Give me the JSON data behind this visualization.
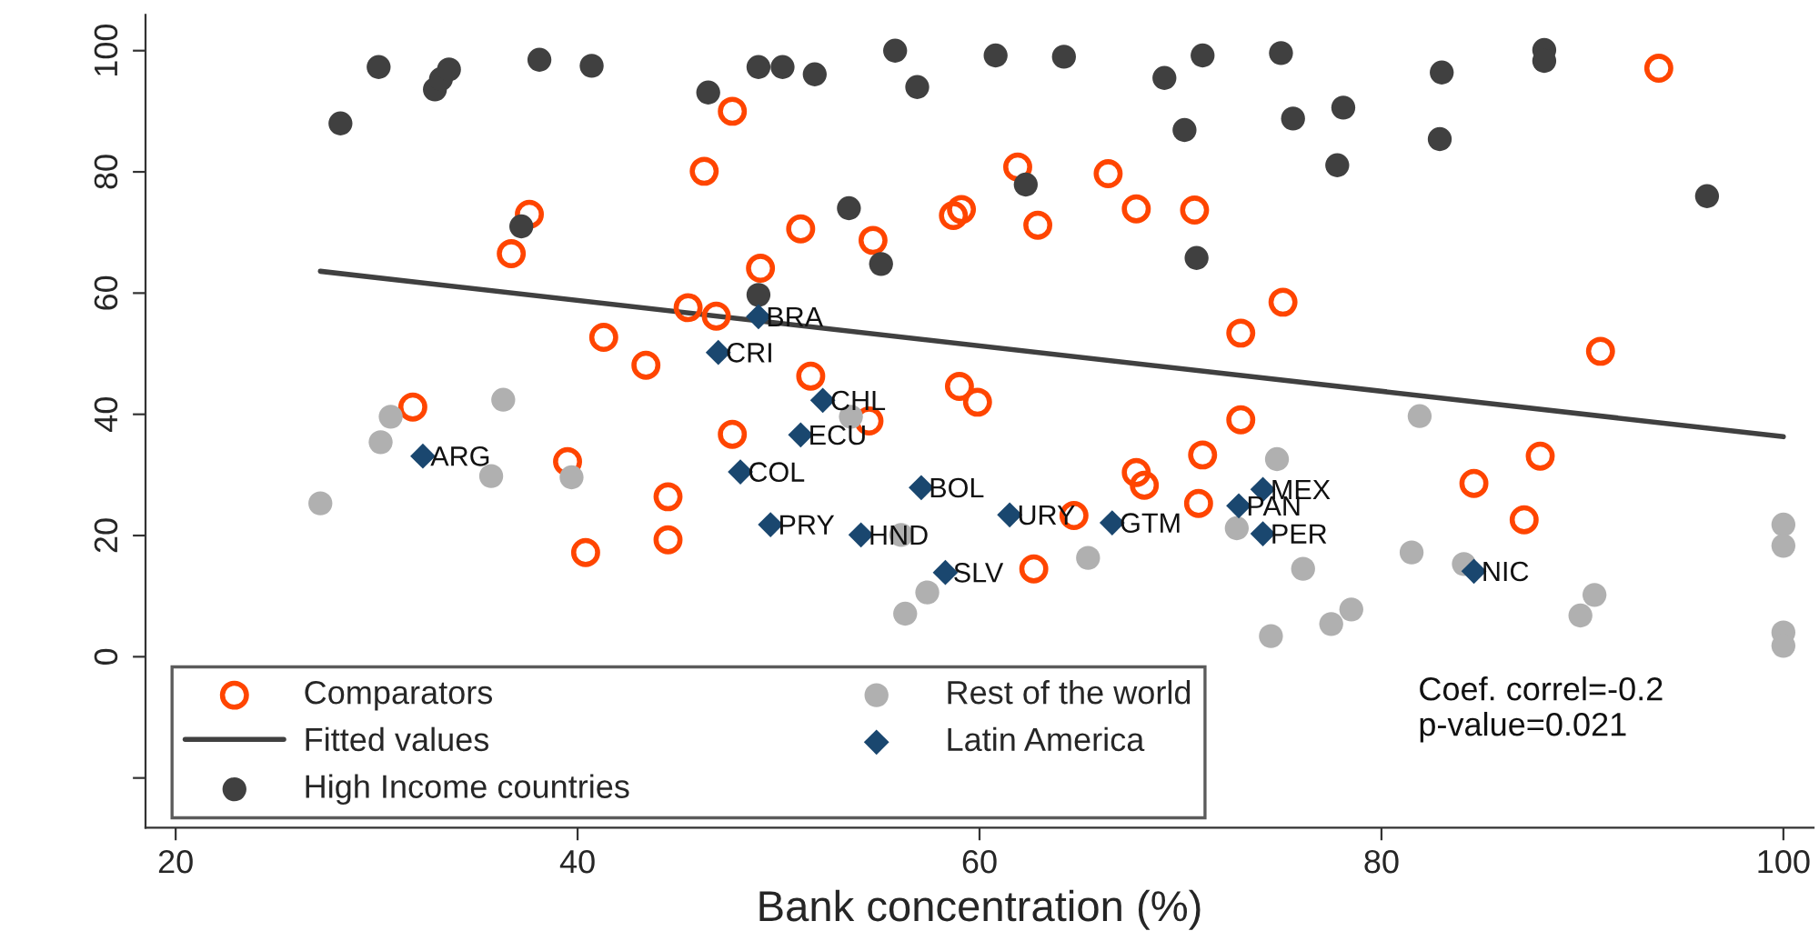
{
  "chart_data": {
    "type": "scatter",
    "xlabel": "Bank concentration (%)",
    "xlim": [
      18.5,
      101.5
    ],
    "xticks": [
      20,
      40,
      60,
      80,
      100
    ],
    "ylim": [
      -28.2,
      105.9
    ],
    "yticks": [
      {
        "value": -20,
        "label": null
      },
      0,
      20,
      40,
      60,
      80,
      100
    ],
    "grid": false,
    "legend": "bottom left",
    "annotations": [
      "Coef. correl=-0.2",
      "p-value=0.021"
    ],
    "series": [
      {
        "name": "Comparators",
        "marker": "circle-open",
        "color": "#ff4500",
        "x": [
          47.7,
          46.3,
          37.6,
          36.7,
          51.1,
          54.7,
          49.1,
          58.7,
          59.1,
          45.5,
          46.9,
          41.3,
          43.4,
          51.6,
          59.0,
          59.9,
          31.8,
          39.5,
          47.7,
          54.5,
          44.5,
          44.5,
          40.4,
          61.9,
          66.4,
          67.8,
          70.7,
          62.9,
          93.8,
          75.1,
          73.0,
          90.9,
          73.0,
          71.1,
          87.9,
          84.6,
          87.1,
          67.8,
          68.2,
          70.9,
          64.7,
          62.7
        ],
        "values": [
          90.0,
          80.1,
          73.0,
          66.5,
          70.6,
          68.7,
          64.1,
          72.8,
          73.8,
          57.6,
          56.2,
          52.7,
          48.1,
          46.3,
          44.6,
          42.0,
          41.2,
          32.2,
          36.7,
          38.9,
          26.4,
          19.3,
          17.2,
          80.8,
          79.7,
          73.9,
          73.7,
          71.2,
          97.1,
          58.5,
          53.4,
          50.4,
          39.1,
          33.3,
          33.1,
          28.6,
          22.6,
          30.4,
          28.3,
          25.3,
          23.3,
          14.5
        ]
      },
      {
        "name": "Fitted values",
        "type": "line",
        "line_style": "solid",
        "color": "#404040",
        "x": [
          27.2,
          100
        ],
        "values": [
          63.6,
          36.3
        ]
      },
      {
        "name": "High Income countries",
        "marker": "circle",
        "color": "#404040",
        "x": [
          28.2,
          30.1,
          32.9,
          33.2,
          33.6,
          38.1,
          40.7,
          46.5,
          49.0,
          50.2,
          51.8,
          55.8,
          56.9,
          37.2,
          53.5,
          49.0,
          55.1,
          60.8,
          64.2,
          69.2,
          71.1,
          75.0,
          70.2,
          75.6,
          78.1,
          77.8,
          83.0,
          82.9,
          88.1,
          88.1,
          96.2,
          62.3,
          70.8
        ],
        "values": [
          88.0,
          97.3,
          93.6,
          95.3,
          96.9,
          98.5,
          97.5,
          93.1,
          97.3,
          97.3,
          96.1,
          100.0,
          94.0,
          71.0,
          74.0,
          59.7,
          64.8,
          99.2,
          99.0,
          95.5,
          99.2,
          99.6,
          86.9,
          88.8,
          90.6,
          81.1,
          96.4,
          85.4,
          100.1,
          98.3,
          76.0,
          77.9,
          65.8
        ]
      },
      {
        "name": "Rest of the world",
        "marker": "circle",
        "color": "#b0b0b0",
        "x": [
          30.7,
          30.2,
          36.3,
          27.2,
          35.7,
          39.7,
          53.6,
          56.1,
          57.4,
          56.3,
          81.9,
          74.8,
          72.8,
          65.4,
          76.1,
          81.5,
          84.1,
          100,
          100,
          90.6,
          89.9,
          78.5,
          77.5,
          74.5,
          100,
          100
        ],
        "values": [
          39.6,
          35.4,
          42.4,
          25.3,
          29.8,
          29.6,
          39.6,
          20.1,
          10.6,
          7.1,
          39.7,
          32.6,
          21.2,
          16.3,
          14.5,
          17.2,
          15.3,
          21.8,
          18.3,
          10.2,
          6.8,
          7.8,
          5.4,
          3.4,
          4.0,
          1.8
        ]
      },
      {
        "name": "Latin America",
        "marker": "diamond",
        "color": "#1a476f",
        "x": [
          32.3,
          49.0,
          47.0,
          52.2,
          51.1,
          48.1,
          49.6,
          54.1,
          57.1,
          58.3,
          61.5,
          66.6,
          74.1,
          72.9,
          74.1,
          84.6
        ],
        "values": [
          33.1,
          56.1,
          50.2,
          42.3,
          36.6,
          30.5,
          21.8,
          20.1,
          27.9,
          13.9,
          23.4,
          22.1,
          27.6,
          24.9,
          20.3,
          14.1
        ],
        "value_labels": [
          "ARG",
          "BRA",
          "CRI",
          "CHL",
          "ECU",
          "COL",
          "PRY",
          "HND",
          "BOL",
          "SLV",
          "URY",
          "GTM",
          "MEX",
          "PAN",
          "PER",
          "NIC"
        ]
      }
    ]
  }
}
